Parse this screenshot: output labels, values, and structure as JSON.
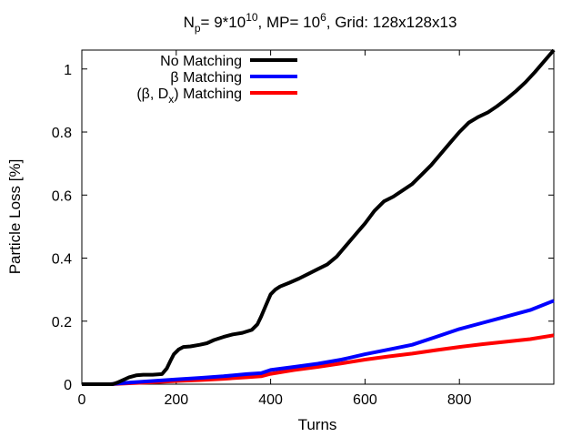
{
  "chart_data": {
    "type": "line",
    "title": {
      "p1": "N",
      "p1_sub": "p",
      "p2": "= 9*10",
      "p2_sup": "10",
      "p3": ", MP= 10",
      "p3_sup": "6",
      "p4": ", Grid: 128x128x13"
    },
    "xlabel": "Turns",
    "ylabel": "Particle Loss [%]",
    "xlim": [
      0,
      1000
    ],
    "ylim": [
      0,
      1.06
    ],
    "xticks": [
      0,
      200,
      400,
      600,
      800
    ],
    "xtick_labels": [
      "0",
      "200",
      "400",
      "600",
      "800"
    ],
    "yticks": [
      0,
      0.2,
      0.4,
      0.6,
      0.8,
      1
    ],
    "ytick_labels": [
      "0",
      "0.2",
      "0.4",
      "0.6",
      "0.8",
      "1"
    ],
    "grid": false,
    "legend_position": "top-left",
    "series": [
      {
        "name": "No Matching",
        "label": "No Matching",
        "color": "#000000",
        "x": [
          0,
          65,
          75,
          90,
          100,
          115,
          130,
          150,
          170,
          180,
          188,
          195,
          205,
          215,
          230,
          250,
          265,
          280,
          300,
          320,
          340,
          360,
          372,
          380,
          390,
          400,
          410,
          420,
          440,
          460,
          480,
          500,
          520,
          540,
          560,
          580,
          600,
          620,
          640,
          660,
          680,
          700,
          720,
          740,
          760,
          780,
          800,
          820,
          840,
          860,
          880,
          900,
          920,
          940,
          960,
          980,
          1000
        ],
        "y": [
          0,
          0,
          0.005,
          0.015,
          0.022,
          0.028,
          0.03,
          0.03,
          0.032,
          0.05,
          0.075,
          0.095,
          0.11,
          0.118,
          0.12,
          0.125,
          0.13,
          0.14,
          0.15,
          0.158,
          0.163,
          0.172,
          0.19,
          0.215,
          0.25,
          0.285,
          0.3,
          0.31,
          0.322,
          0.335,
          0.35,
          0.365,
          0.38,
          0.405,
          0.44,
          0.475,
          0.51,
          0.55,
          0.58,
          0.595,
          0.615,
          0.635,
          0.665,
          0.695,
          0.73,
          0.765,
          0.8,
          0.83,
          0.848,
          0.862,
          0.882,
          0.905,
          0.93,
          0.958,
          0.99,
          1.025,
          1.06
        ]
      },
      {
        "name": "β Matching",
        "label": "β Matching",
        "color": "#0000ff",
        "x": [
          0,
          60,
          100,
          150,
          200,
          250,
          300,
          350,
          380,
          400,
          450,
          500,
          550,
          600,
          650,
          700,
          750,
          800,
          850,
          900,
          950,
          1000
        ],
        "y": [
          0,
          0,
          0.005,
          0.01,
          0.015,
          0.02,
          0.025,
          0.032,
          0.035,
          0.045,
          0.055,
          0.065,
          0.078,
          0.095,
          0.11,
          0.125,
          0.15,
          0.175,
          0.195,
          0.215,
          0.235,
          0.265
        ]
      },
      {
        "name": "(β, Dx) Matching",
        "label": "(β, D",
        "label_sub": "x",
        "label_end": ") Matching",
        "color": "#ff0000",
        "x": [
          0,
          60,
          100,
          150,
          200,
          250,
          300,
          350,
          380,
          400,
          450,
          500,
          550,
          600,
          650,
          700,
          750,
          800,
          850,
          900,
          950,
          1000
        ],
        "y": [
          0,
          0,
          0.003,
          0.006,
          0.01,
          0.013,
          0.017,
          0.022,
          0.025,
          0.033,
          0.045,
          0.055,
          0.066,
          0.078,
          0.088,
          0.097,
          0.108,
          0.118,
          0.127,
          0.135,
          0.143,
          0.155
        ]
      }
    ]
  }
}
